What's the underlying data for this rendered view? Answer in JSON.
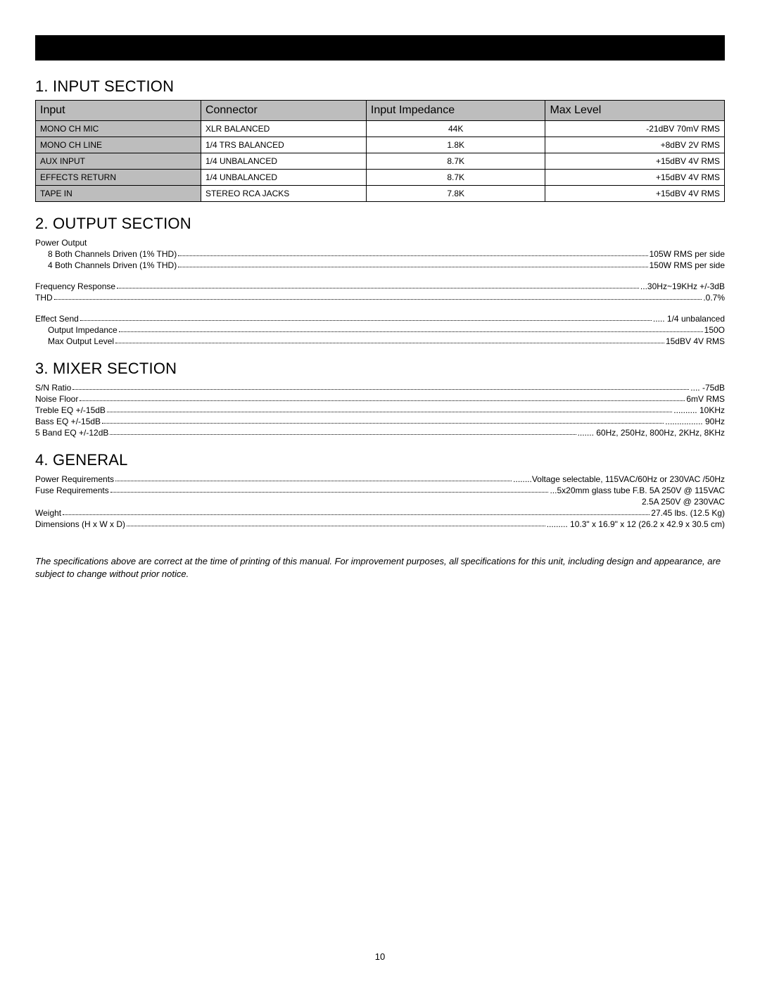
{
  "page_number": "10",
  "black_bar_color": "#000000",
  "header_bg_color": "#bdbdbd",
  "border_color": "#000000",
  "s1": {
    "heading": "1. INPUT SECTION",
    "columns": [
      "Input",
      "Connector",
      "Input Impedance",
      "Max Level"
    ],
    "rows": [
      {
        "input": "MONO CH MIC",
        "connector": "XLR BALANCED",
        "impedance": "44K",
        "max": "-21dBV 70mV RMS"
      },
      {
        "input": "MONO CH LINE",
        "connector": "1/4  TRS BALANCED",
        "impedance": "1.8K",
        "max": "+8dBV 2V RMS"
      },
      {
        "input": "AUX INPUT",
        "connector": "1/4  UNBALANCED",
        "impedance": "8.7K",
        "max": "+15dBV 4V RMS"
      },
      {
        "input": "EFFECTS RETURN",
        "connector": "1/4  UNBALANCED",
        "impedance": "8.7K",
        "max": "+15dBV 4V RMS"
      },
      {
        "input": "TAPE IN",
        "connector": "STEREO RCA JACKS",
        "impedance": "7.8K",
        "max": "+15dBV 4V RMS"
      }
    ]
  },
  "s2": {
    "heading": "2. OUTPUT SECTION",
    "power_output_label": "Power Output",
    "lines_a": [
      {
        "indent": 1,
        "label": "8    Both Channels Driven (1% THD)",
        "value": "105W RMS per side"
      },
      {
        "indent": 1,
        "label": "4    Both Channels Driven (1% THD)",
        "value": "150W RMS per side"
      }
    ],
    "lines_b": [
      {
        "indent": 0,
        "label": "Frequency Response",
        "value": "...30Hz~19KHz +/-3dB"
      },
      {
        "indent": 0,
        "label": "THD",
        "value": ".0.7%"
      }
    ],
    "lines_c": [
      {
        "indent": 0,
        "label": "Effect Send",
        "value": "..... 1/4 unbalanced"
      },
      {
        "indent": 1,
        "label": "Output Impedance",
        "value": "150O"
      },
      {
        "indent": 1,
        "label": "Max Output Level",
        "value": "15dBV  4V RMS"
      }
    ]
  },
  "s3": {
    "heading": "3. MIXER SECTION",
    "lines": [
      {
        "label": "S/N Ratio",
        "value": ".... -75dB"
      },
      {
        "label": "Noise Floor",
        "value": "6mV RMS"
      },
      {
        "label": "Treble EQ +/-15dB",
        "value": ".......... 10KHz"
      },
      {
        "label": "Bass EQ +/-15dB",
        "value": "................ 90Hz"
      },
      {
        "label": "5 Band EQ +/-12dB",
        "value": ".......  60Hz, 250Hz, 800Hz, 2KHz, 8KHz"
      }
    ]
  },
  "s4": {
    "heading": "4. GENERAL",
    "lines": [
      {
        "label": "Power Requirements ",
        "value": "........Voltage selectable, 115VAC/60Hz or 230VAC /50Hz"
      },
      {
        "label": "Fuse Requirements",
        "value": "...5x20mm glass tube F.B.   5A 250V @ 115VAC"
      }
    ],
    "extra_right": "2.5A 250V @ 230VAC",
    "lines2": [
      {
        "label": "Weight ",
        "value": "27.45 lbs. (12.5 Kg)"
      },
      {
        "label": "Dimensions (H x W x D) ",
        "value": ".........  10.3\" x 16.9\" x 12 (26.2 x 42.9 x 30.5 cm)"
      }
    ]
  },
  "disclaimer": "The specifications above are correct at the time of printing of this manual. For improvement purposes, all specifications for this unit, including design and appearance, are subject to change without prior notice."
}
